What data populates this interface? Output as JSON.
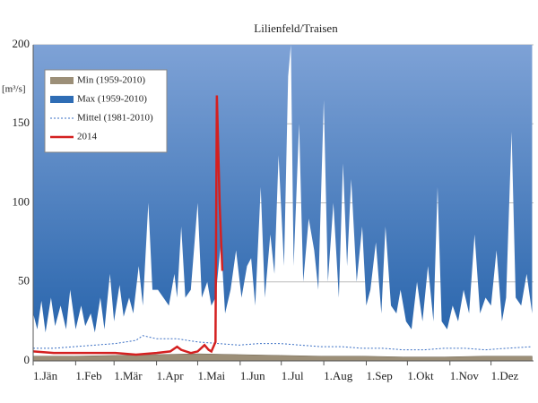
{
  "chart_data": {
    "type": "hydrograph",
    "title": "Lilienfeld/Traisen",
    "y_label": "[m³/s]",
    "xlim": [
      0,
      365
    ],
    "xticks": [
      {
        "value": 0,
        "label": "1.Jän"
      },
      {
        "value": 31,
        "label": "1.Feb"
      },
      {
        "value": 59,
        "label": "1.Mär"
      },
      {
        "value": 90,
        "label": "1.Apr"
      },
      {
        "value": 120,
        "label": "1.Mai"
      },
      {
        "value": 151,
        "label": "1.Jun"
      },
      {
        "value": 181,
        "label": "1.Jul"
      },
      {
        "value": 212,
        "label": "1.Aug"
      },
      {
        "value": 243,
        "label": "1.Sep"
      },
      {
        "value": 273,
        "label": "1.Okt"
      },
      {
        "value": 304,
        "label": "1.Nov"
      },
      {
        "value": 334,
        "label": "1.Dez"
      }
    ],
    "ylim": [
      0,
      200
    ],
    "yticks": [
      0,
      50,
      100,
      150,
      200
    ],
    "grid": true,
    "legend": "upper left",
    "series": [
      {
        "name": "Min (1959-2010)",
        "color": "#9c8f78",
        "style": "area",
        "x": [
          0,
          30,
          60,
          90,
          120,
          150,
          180,
          210,
          240,
          270,
          300,
          330,
          364
        ],
        "values": [
          3,
          3,
          3.5,
          4,
          4.5,
          4,
          3.5,
          3,
          3,
          2.5,
          2.5,
          3,
          3
        ]
      },
      {
        "name": "Max (1959-2010)",
        "color": "#2f6db5",
        "style": "area-top",
        "x": [
          0,
          3,
          6,
          9,
          13,
          16,
          20,
          24,
          27,
          31,
          35,
          38,
          42,
          45,
          49,
          52,
          56,
          59,
          63,
          66,
          70,
          73,
          77,
          80,
          84,
          87,
          91,
          95,
          99,
          103,
          105,
          108,
          111,
          115,
          120,
          123,
          127,
          130,
          133,
          137,
          140,
          144,
          148,
          152,
          156,
          159,
          162,
          166,
          169,
          173,
          176,
          179,
          183,
          186,
          188,
          190,
          194,
          197,
          201,
          205,
          208,
          212,
          215,
          219,
          223,
          226,
          229,
          232,
          236,
          240,
          243,
          246,
          250,
          254,
          257,
          261,
          265,
          268,
          272,
          276,
          280,
          284,
          288,
          292,
          295,
          298,
          302,
          306,
          310,
          314,
          318,
          322,
          326,
          330,
          334,
          338,
          342,
          345,
          349,
          352,
          356,
          360,
          364
        ],
        "values": [
          30,
          20,
          38,
          18,
          40,
          22,
          35,
          20,
          45,
          20,
          35,
          22,
          30,
          18,
          40,
          20,
          55,
          25,
          48,
          28,
          40,
          30,
          60,
          35,
          100,
          45,
          45,
          40,
          35,
          55,
          40,
          85,
          40,
          45,
          100,
          40,
          50,
          35,
          40,
          75,
          30,
          45,
          70,
          40,
          60,
          65,
          35,
          110,
          40,
          80,
          55,
          130,
          60,
          180,
          200,
          60,
          150,
          50,
          90,
          70,
          45,
          165,
          50,
          100,
          40,
          125,
          60,
          115,
          50,
          85,
          35,
          45,
          75,
          30,
          85,
          35,
          30,
          45,
          25,
          20,
          50,
          25,
          60,
          25,
          110,
          25,
          20,
          35,
          25,
          45,
          30,
          80,
          30,
          40,
          35,
          70,
          25,
          40,
          145,
          40,
          35,
          55,
          30
        ]
      },
      {
        "name": "Mittel (1981-2010)",
        "color": "#3a6fc4",
        "style": "dotted",
        "x": [
          0,
          15,
          30,
          45,
          60,
          75,
          80,
          90,
          105,
          120,
          135,
          150,
          165,
          180,
          195,
          210,
          225,
          240,
          255,
          270,
          285,
          300,
          315,
          330,
          345,
          364
        ],
        "values": [
          8,
          8,
          9,
          10,
          11,
          13,
          16,
          14,
          14,
          12,
          11,
          10,
          11,
          11,
          10,
          9,
          9,
          8,
          8,
          7,
          7,
          8,
          8,
          7,
          8,
          9
        ]
      },
      {
        "name": "2014",
        "color": "#d42020",
        "style": "line",
        "x": [
          0,
          15,
          30,
          45,
          60,
          75,
          90,
          100,
          105,
          108,
          115,
          120,
          125,
          128,
          130,
          133,
          134,
          136,
          138
        ],
        "values": [
          6,
          5,
          5,
          5,
          5,
          4,
          5,
          6,
          9,
          7,
          5,
          6,
          10,
          7,
          6,
          12,
          168,
          100,
          57
        ]
      }
    ]
  }
}
